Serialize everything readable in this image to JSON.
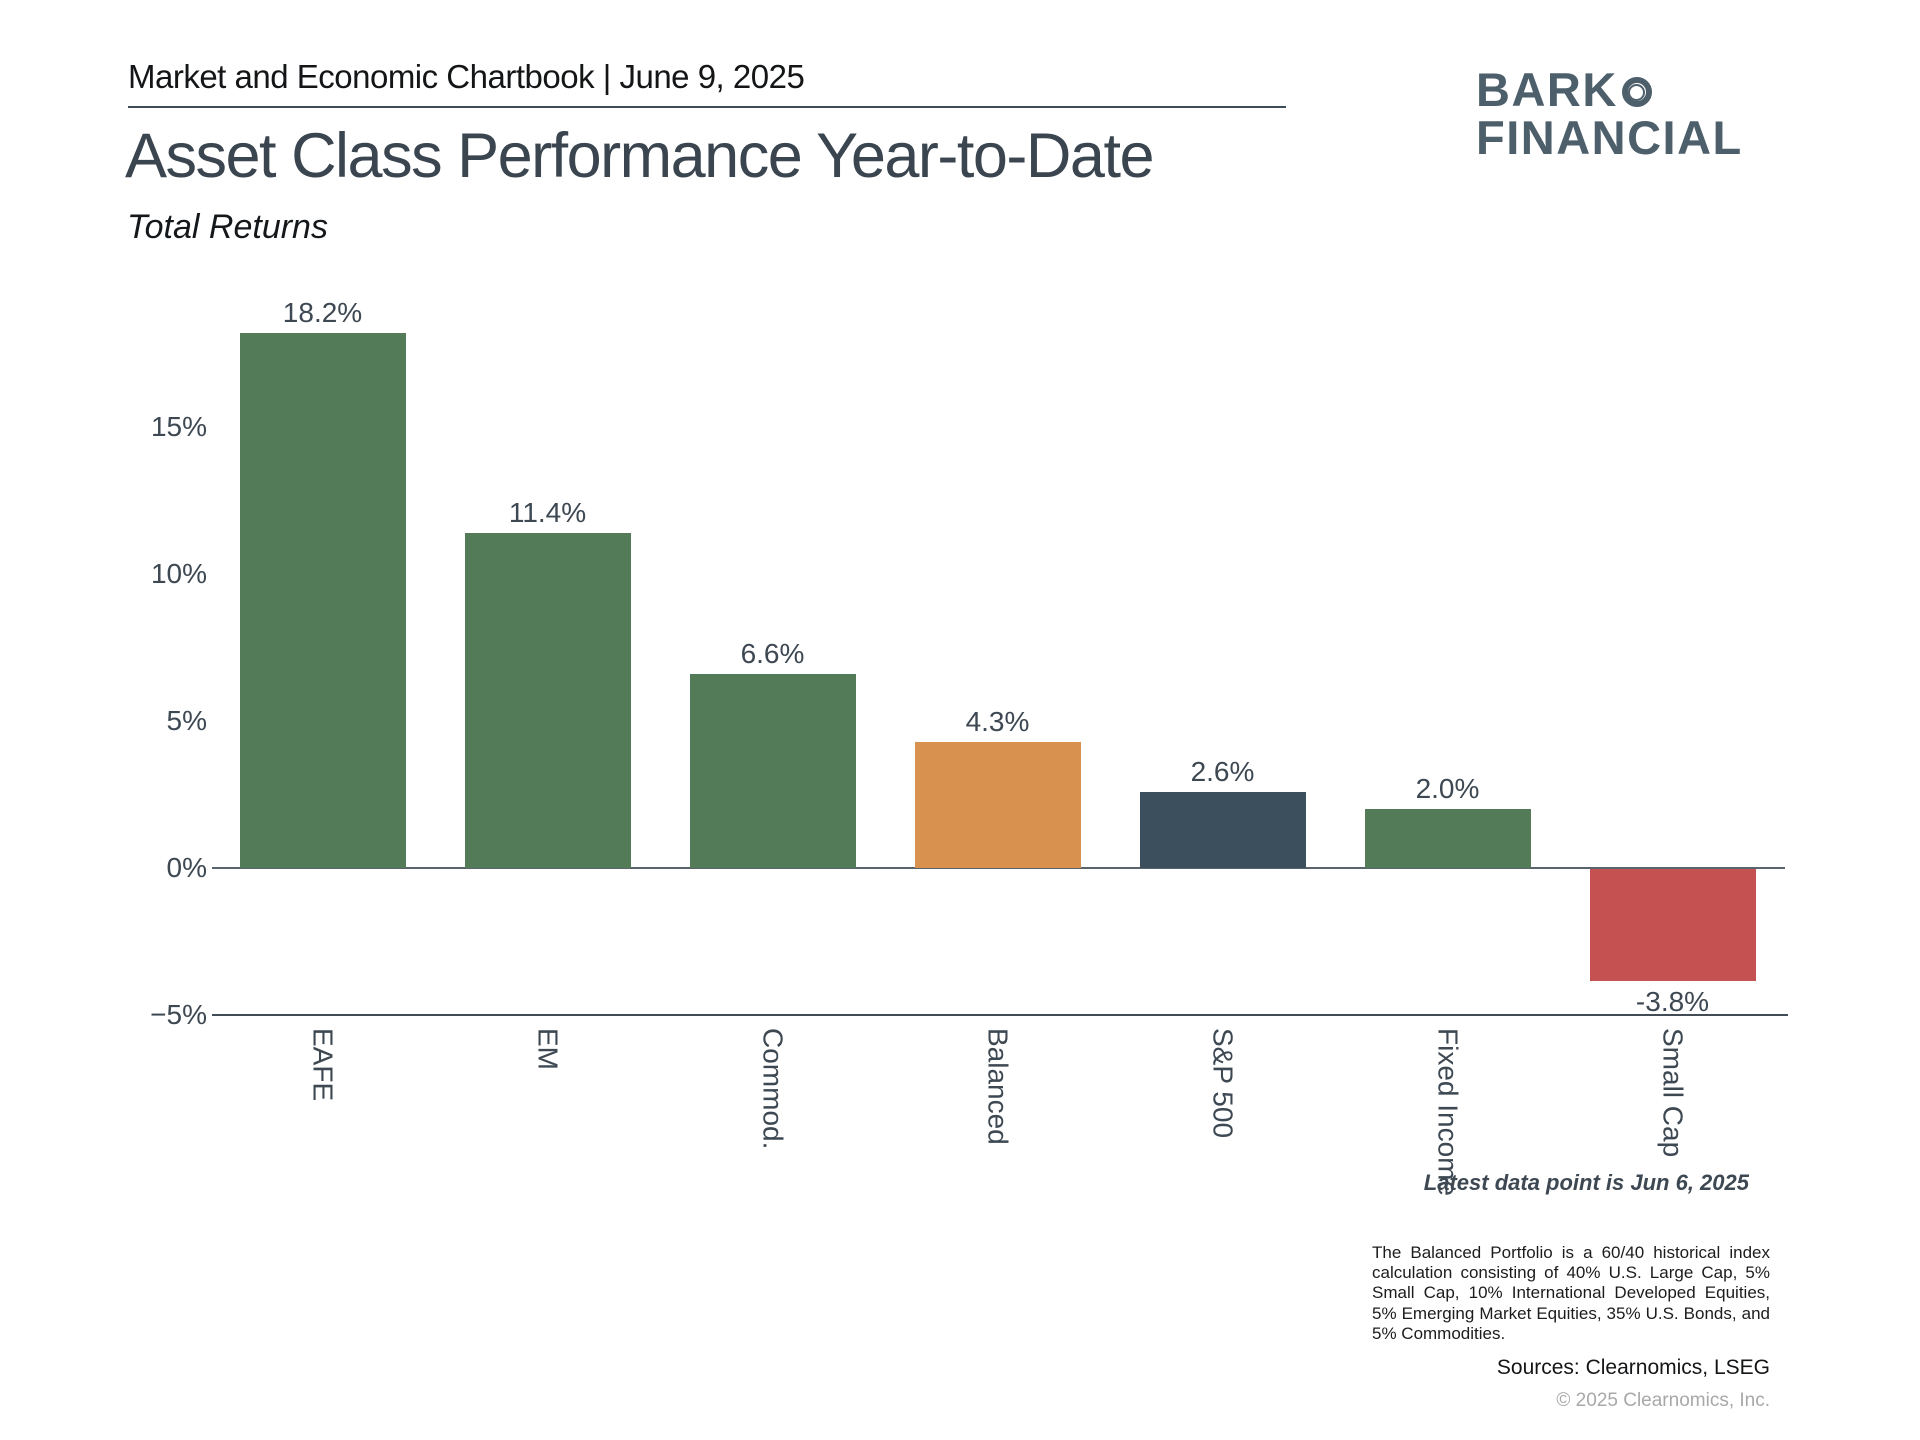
{
  "header": {
    "chartbook_label": "Market and Economic Chartbook | June 9, 2025",
    "title": "Asset Class Performance Year-to-Date",
    "subtitle": "Total Returns"
  },
  "logo": {
    "line1": "BARK",
    "line2": "FINANCIAL",
    "ring_icon": "double-ring-o-icon",
    "color": "#4c5f6b"
  },
  "chart_data": {
    "type": "bar",
    "title": "Asset Class Performance Year-to-Date",
    "subtitle": "Total Returns",
    "categories": [
      "EAFE",
      "EM",
      "Commod.",
      "Balanced",
      "S&P 500",
      "Fixed Income",
      "Small Cap"
    ],
    "values": [
      18.2,
      11.4,
      6.6,
      4.3,
      2.6,
      2.0,
      -3.8
    ],
    "value_labels": [
      "18.2%",
      "11.4%",
      "6.6%",
      "4.3%",
      "2.6%",
      "2.0%",
      "-3.8%"
    ],
    "bar_colors": [
      "#537b58",
      "#537b58",
      "#537b58",
      "#d8914e",
      "#3c4f5d",
      "#537b58",
      "#c65151"
    ],
    "yticks": [
      {
        "value": 15,
        "label": "15%"
      },
      {
        "value": 10,
        "label": "10%"
      },
      {
        "value": 5,
        "label": "5%"
      },
      {
        "value": 0,
        "label": "0%"
      },
      {
        "value": -5,
        "label": "−5%"
      }
    ],
    "ylim": [
      -5,
      19
    ],
    "xlabel": "",
    "ylabel": "",
    "grid": false,
    "legend": "none",
    "x_tick_rotation": "vertical"
  },
  "annotations": {
    "latest_data": "Latest data point is Jun 6, 2025",
    "footnote": "The Balanced Portfolio is a 60/40 historical index calculation consisting of 40% U.S. Large Cap, 5% Small Cap, 10% International Developed Equities, 5% Emerging Market Equities, 35% U.S. Bonds, and 5% Commodities.",
    "sources": "Sources: Clearnomics, LSEG",
    "copyright": "© 2025 Clearnomics, Inc."
  },
  "colors": {
    "green": "#537b58",
    "orange": "#d8914e",
    "navy": "#3c4f5d",
    "red": "#c65151",
    "text_slate": "#3d4852",
    "title": "#3a454f",
    "logo": "#4c5f6b",
    "zero_line": "#5a646d",
    "axis_line": "#414c56",
    "copyright_gray": "#a8a8a8"
  }
}
